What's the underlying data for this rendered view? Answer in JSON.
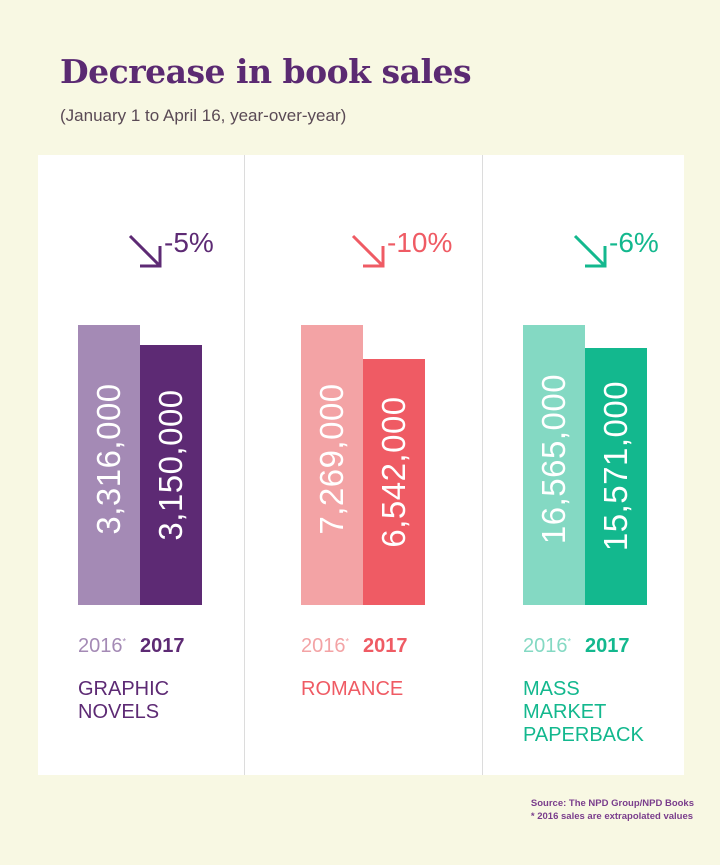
{
  "title": "Decrease in book sales",
  "subtitle": "(January 1 to April 16, year-over-year)",
  "source": {
    "line1": "Source: The NPD Group/NPD Books",
    "line2": "* 2016 sales are extrapolated values"
  },
  "chart_data": {
    "type": "bar",
    "title": "Decrease in book sales",
    "subtitle": "(January 1 to April 16, year-over-year)",
    "categories": [
      "GRAPHIC NOVELS",
      "ROMANCE",
      "MASS MARKET PAPERBACK"
    ],
    "series": [
      {
        "name": "2016",
        "values": [
          3316000,
          7269000,
          16565000
        ]
      },
      {
        "name": "2017",
        "values": [
          3150000,
          6542000,
          15571000
        ]
      }
    ],
    "panels": [
      {
        "category": "GRAPHIC\nNOVELS",
        "change": "-5%",
        "v2016": 3316000,
        "v2017": 3150000,
        "label2016": "3,316,000",
        "label2017": "3,150,000",
        "year2016": "2016",
        "year2016_mark": "*",
        "year2017": "2017",
        "color_light": "#a48ab5",
        "color_dark": "#5d2a74"
      },
      {
        "category": "ROMANCE",
        "change": "-10%",
        "v2016": 7269000,
        "v2017": 6542000,
        "label2016": "7,269,000",
        "label2017": "6,542,000",
        "year2016": "2016",
        "year2016_mark": "*",
        "year2017": "2017",
        "color_light": "#f3a3a5",
        "color_dark": "#ef5b64"
      },
      {
        "category": "MASS\nMARKET\nPAPERBACK",
        "change": "-6%",
        "v2016": 16565000,
        "v2017": 15571000,
        "label2016": "16,565,000",
        "label2017": "15,571,000",
        "year2016": "2016",
        "year2016_mark": "*",
        "year2017": "2017",
        "color_light": "#84d9c3",
        "color_dark": "#13b88e"
      }
    ]
  }
}
